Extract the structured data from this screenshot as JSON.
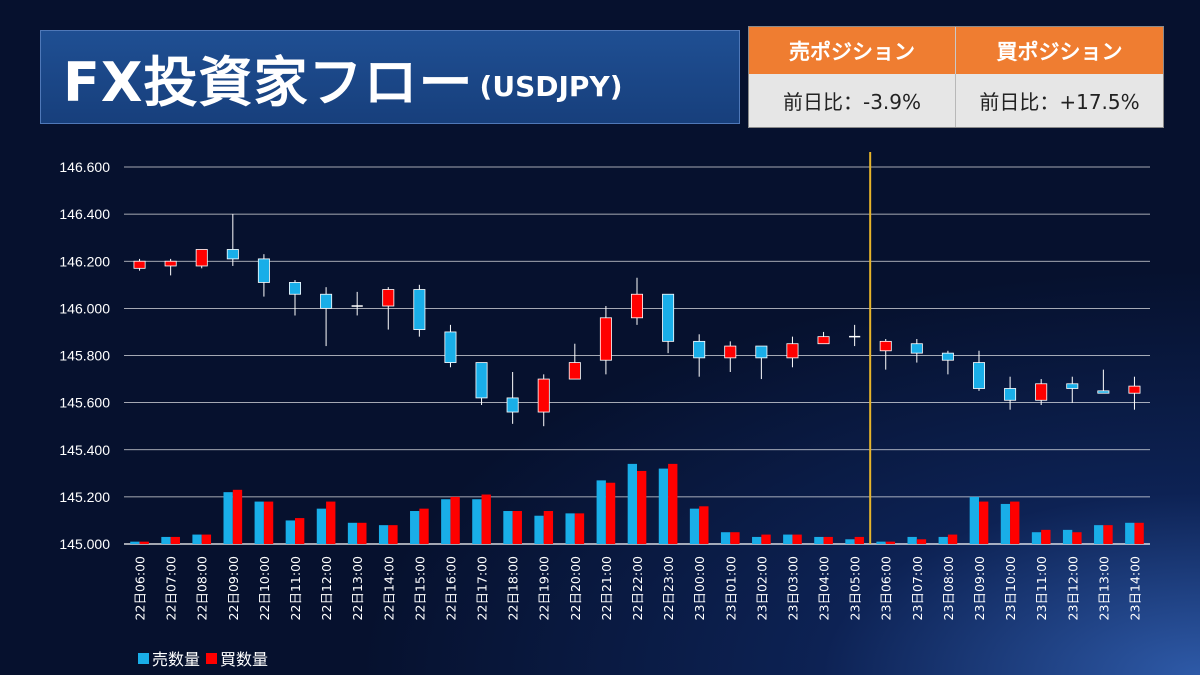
{
  "header": {
    "title": "FX投資家フロー",
    "subtitle": "(USDJPY)"
  },
  "positions": {
    "sell_label": "売ポジション",
    "buy_label": "買ポジション",
    "sell_change": "前日比：-3.9%",
    "buy_change": "前日比：+17.5%",
    "header_color": "#ef7d31"
  },
  "legend": {
    "sell": "売数量",
    "buy": "買数量"
  },
  "colors": {
    "up": "#ff0000",
    "down": "#19aee8",
    "grid": "#ffffff",
    "marker": "#e7b52b"
  },
  "chart_data": {
    "type": "candlestick",
    "y_ticks": [
      "145.000",
      "145.200",
      "145.400",
      "145.600",
      "145.800",
      "146.000",
      "146.200",
      "146.400",
      "146.600"
    ],
    "ylim": [
      145.0,
      146.6
    ],
    "vertical_marker_after": "23日05:00",
    "categories": [
      "22日06:00",
      "22日07:00",
      "22日08:00",
      "22日09:00",
      "22日10:00",
      "22日11:00",
      "22日12:00",
      "22日13:00",
      "22日14:00",
      "22日15:00",
      "22日16:00",
      "22日17:00",
      "22日18:00",
      "22日19:00",
      "22日20:00",
      "22日21:00",
      "22日22:00",
      "22日23:00",
      "23日00:00",
      "23日01:00",
      "23日02:00",
      "23日03:00",
      "23日04:00",
      "23日05:00",
      "23日06:00",
      "23日07:00",
      "23日08:00",
      "23日09:00",
      "23日10:00",
      "23日11:00",
      "23日12:00",
      "23日13:00",
      "23日14:00"
    ],
    "ohlc": [
      [
        146.17,
        146.21,
        146.16,
        146.2
      ],
      [
        146.18,
        146.21,
        146.14,
        146.2
      ],
      [
        146.18,
        146.25,
        146.17,
        146.25
      ],
      [
        146.25,
        146.4,
        146.18,
        146.21
      ],
      [
        146.21,
        146.23,
        146.05,
        146.11
      ],
      [
        146.11,
        146.12,
        145.97,
        146.06
      ],
      [
        146.06,
        146.09,
        145.84,
        146.0
      ],
      [
        146.01,
        146.07,
        145.97,
        146.01
      ],
      [
        146.01,
        146.09,
        145.91,
        146.08
      ],
      [
        146.08,
        146.1,
        145.88,
        145.91
      ],
      [
        145.9,
        145.93,
        145.75,
        145.77
      ],
      [
        145.77,
        145.77,
        145.59,
        145.62
      ],
      [
        145.62,
        145.73,
        145.51,
        145.56
      ],
      [
        145.56,
        145.72,
        145.5,
        145.7
      ],
      [
        145.7,
        145.85,
        145.7,
        145.77
      ],
      [
        145.78,
        146.01,
        145.72,
        145.96
      ],
      [
        145.96,
        146.13,
        145.93,
        146.06
      ],
      [
        146.06,
        146.06,
        145.81,
        145.86
      ],
      [
        145.86,
        145.89,
        145.71,
        145.79
      ],
      [
        145.79,
        145.86,
        145.73,
        145.84
      ],
      [
        145.84,
        145.84,
        145.7,
        145.79
      ],
      [
        145.79,
        145.88,
        145.75,
        145.85
      ],
      [
        145.85,
        145.9,
        145.85,
        145.88
      ],
      [
        145.88,
        145.93,
        145.84,
        145.88
      ],
      [
        145.82,
        145.87,
        145.74,
        145.86
      ],
      [
        145.85,
        145.87,
        145.77,
        145.81
      ],
      [
        145.81,
        145.82,
        145.72,
        145.78
      ],
      [
        145.77,
        145.82,
        145.65,
        145.66
      ],
      [
        145.66,
        145.71,
        145.57,
        145.61
      ],
      [
        145.61,
        145.7,
        145.59,
        145.68
      ],
      [
        145.68,
        145.71,
        145.6,
        145.66
      ],
      [
        145.65,
        145.74,
        145.64,
        145.64
      ],
      [
        145.64,
        145.71,
        145.57,
        145.67
      ]
    ],
    "sell_volume": [
      145.01,
      145.03,
      145.04,
      145.22,
      145.18,
      145.1,
      145.15,
      145.09,
      145.08,
      145.14,
      145.19,
      145.19,
      145.14,
      145.12,
      145.13,
      145.27,
      145.34,
      145.32,
      145.15,
      145.05,
      145.03,
      145.04,
      145.03,
      145.02,
      145.01,
      145.03,
      145.03,
      145.2,
      145.17,
      145.05,
      145.06,
      145.08,
      145.09
    ],
    "buy_volume": [
      145.01,
      145.03,
      145.04,
      145.23,
      145.18,
      145.11,
      145.18,
      145.09,
      145.08,
      145.15,
      145.2,
      145.21,
      145.14,
      145.14,
      145.13,
      145.26,
      145.31,
      145.34,
      145.16,
      145.05,
      145.04,
      145.04,
      145.03,
      145.03,
      145.01,
      145.02,
      145.04,
      145.18,
      145.18,
      145.06,
      145.05,
      145.08,
      145.09
    ]
  }
}
